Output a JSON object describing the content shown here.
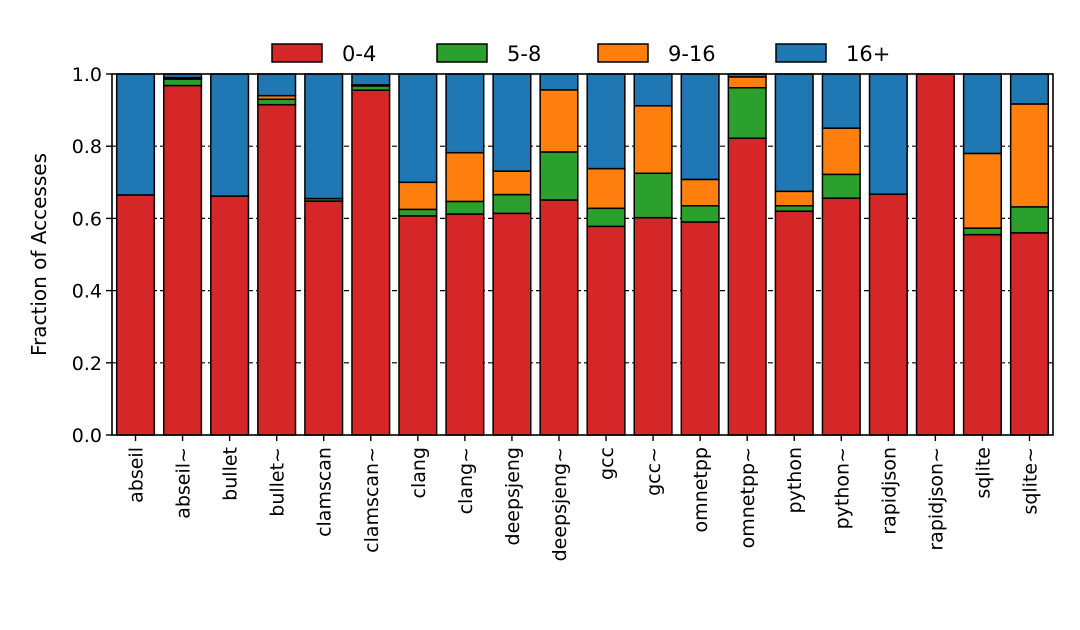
{
  "chart_data": {
    "type": "bar",
    "stacked": true,
    "title": "",
    "xlabel": "",
    "ylabel": "Fraction of Accesses",
    "ylim": [
      0.0,
      1.0
    ],
    "yticks": [
      "0.0",
      "0.2",
      "0.4",
      "0.6",
      "0.8",
      "1.0"
    ],
    "grid": "horizontal dashed",
    "legend_position": "top",
    "categories": [
      "abseil",
      "abseil~",
      "bullet",
      "bullet~",
      "clamscan",
      "clamscan~",
      "clang",
      "clang~",
      "deepsjeng",
      "deepsjeng~",
      "gcc",
      "gcc~",
      "omnetpp",
      "omnetpp~",
      "python",
      "python~",
      "rapidjson",
      "rapidjson~",
      "sqlite",
      "sqlite~"
    ],
    "series": [
      {
        "name": "0-4",
        "color": "#d62728",
        "values": [
          0.665,
          0.968,
          0.662,
          0.915,
          0.648,
          0.955,
          0.607,
          0.612,
          0.614,
          0.651,
          0.578,
          0.602,
          0.59,
          0.822,
          0.62,
          0.656,
          0.667,
          1.0,
          0.555,
          0.56
        ]
      },
      {
        "name": "5-8",
        "color": "#2ca02c",
        "values": [
          0.0,
          0.018,
          0.0,
          0.015,
          0.007,
          0.012,
          0.018,
          0.035,
          0.052,
          0.133,
          0.05,
          0.123,
          0.045,
          0.14,
          0.015,
          0.066,
          0.0,
          0.0,
          0.018,
          0.072
        ]
      },
      {
        "name": "9-16",
        "color": "#ff7f0e",
        "values": [
          0.0,
          0.004,
          0.0,
          0.01,
          0.0,
          0.003,
          0.075,
          0.135,
          0.065,
          0.172,
          0.11,
          0.187,
          0.073,
          0.03,
          0.04,
          0.128,
          0.0,
          0.0,
          0.207,
          0.285
        ]
      },
      {
        "name": "16+",
        "color": "#1f77b4",
        "values": [
          0.335,
          0.01,
          0.338,
          0.06,
          0.345,
          0.03,
          0.3,
          0.218,
          0.269,
          0.044,
          0.262,
          0.088,
          0.292,
          0.008,
          0.325,
          0.15,
          0.333,
          0.0,
          0.22,
          0.083
        ]
      }
    ]
  }
}
